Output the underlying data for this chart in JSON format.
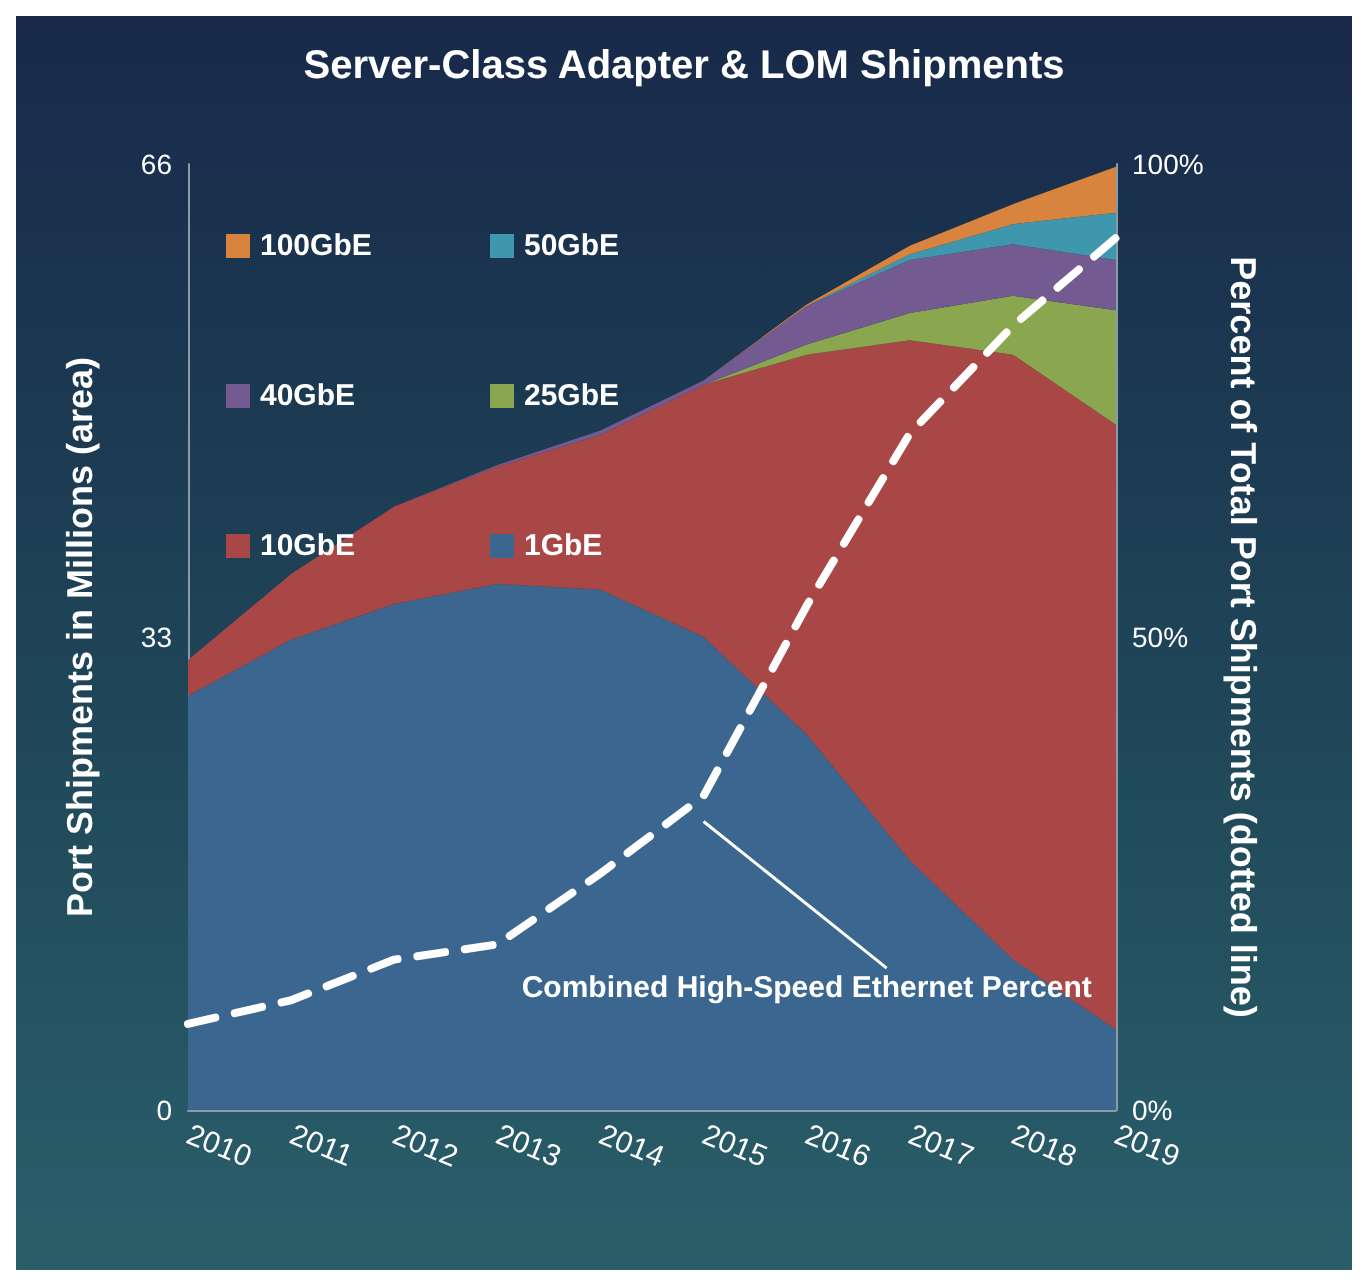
{
  "chart_data": {
    "type": "area",
    "stacked": true,
    "title": "Server-Class Adapter & LOM Shipments",
    "ylabel": "Port Shipments in Millions (area)",
    "y2label": "Percent of Total Port Shipments (dotted line)",
    "categories": [
      "2010",
      "2011",
      "2012",
      "2013",
      "2014",
      "2015",
      "2016",
      "2017",
      "2018",
      "2019"
    ],
    "series": [
      {
        "name": "1GbE",
        "color": "#3a6690",
        "values": [
          28.9,
          32.8,
          35.3,
          36.7,
          36.3,
          33.0,
          26.2,
          17.4,
          10.5,
          5.6
        ]
      },
      {
        "name": "10GbE",
        "color": "#a84745",
        "values": [
          2.5,
          4.6,
          6.8,
          8.2,
          10.8,
          17.6,
          26.5,
          36.3,
          42.2,
          42.2
        ]
      },
      {
        "name": "25GbE",
        "color": "#8aa64e",
        "values": [
          0,
          0,
          0,
          0,
          0,
          0,
          0.7,
          1.9,
          4.1,
          8.0
        ]
      },
      {
        "name": "40GbE",
        "color": "#735a91",
        "values": [
          0,
          0,
          0,
          0.1,
          0.3,
          0.3,
          2.7,
          3.7,
          3.6,
          3.5
        ]
      },
      {
        "name": "50GbE",
        "color": "#3f97ad",
        "values": [
          0,
          0,
          0,
          0,
          0,
          0,
          0,
          0.4,
          1.4,
          3.3
        ]
      },
      {
        "name": "100GbE",
        "color": "#d9843e",
        "values": [
          0,
          0,
          0,
          0,
          0,
          0,
          0.1,
          0.6,
          1.4,
          3.2
        ]
      },
      {
        "type": "line",
        "axis": "y2",
        "color": "#ffffff",
        "line_style": "dashed",
        "marker": "none",
        "values": [
          9.1,
          11.6,
          15.9,
          17.5,
          25.0,
          33.2,
          53.3,
          71.5,
          82.9,
          92.2
        ]
      }
    ],
    "ylim": [
      0,
      66
    ],
    "yticks": [
      0,
      33,
      66
    ],
    "y2lim": [
      0,
      100
    ],
    "y2ticks": [
      {
        "value": 0,
        "label": "0%"
      },
      {
        "value": 50,
        "label": "50%"
      },
      {
        "value": 100,
        "label": "100%"
      }
    ],
    "legend": "top left",
    "grid": false,
    "annotations": [
      "Combined High-Speed Ethernet Percent"
    ]
  }
}
